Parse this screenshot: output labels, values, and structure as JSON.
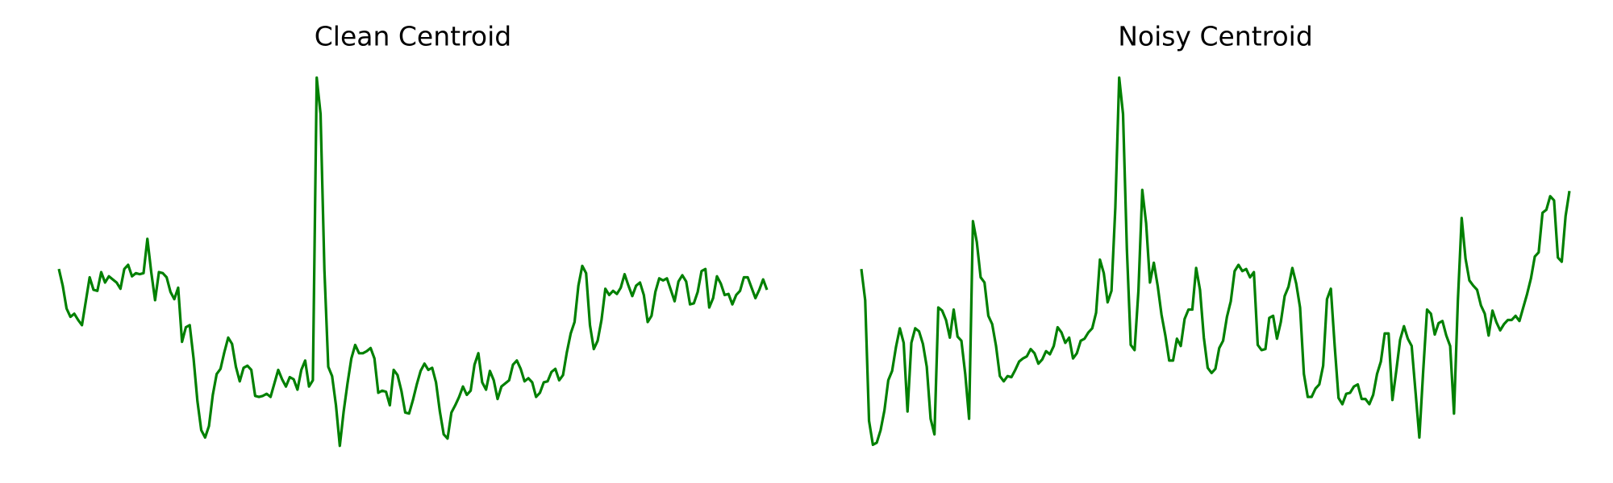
{
  "chart_data": [
    {
      "type": "line",
      "title": "Clean Centroid",
      "color": "#008000",
      "ylim": [
        0,
        370
      ],
      "values": [
        181,
        165,
        143,
        135,
        138,
        132,
        127,
        150,
        173,
        161,
        160,
        178,
        168,
        174,
        171,
        168,
        162,
        181,
        185,
        174,
        177,
        176,
        177,
        210,
        178,
        151,
        178,
        177,
        173,
        159,
        152,
        163,
        111,
        125,
        127,
        95,
        54,
        26,
        19,
        30,
        60,
        80,
        85,
        101,
        115,
        109,
        87,
        73,
        86,
        88,
        84,
        59,
        58,
        59,
        61,
        58,
        71,
        84,
        75,
        68,
        77,
        75,
        65,
        84,
        93,
        68,
        74,
        365,
        330,
        180,
        87,
        78,
        50,
        11,
        44,
        71,
        95,
        108,
        100,
        100,
        102,
        105,
        95,
        62,
        64,
        63,
        50,
        84,
        79,
        64,
        43,
        42,
        55,
        70,
        83,
        90,
        84,
        86,
        72,
        44,
        22,
        18,
        43,
        50,
        58,
        68,
        60,
        64,
        89,
        100,
        72,
        65,
        83,
        74,
        56,
        68,
        71,
        74,
        89,
        93,
        85,
        73,
        76,
        72,
        58,
        62,
        72,
        73,
        82,
        85,
        74,
        79,
        101,
        119,
        130,
        165,
        184,
        177,
        127,
        104,
        112,
        132,
        162,
        156,
        160,
        157,
        163,
        176,
        165,
        155,
        165,
        168,
        156,
        130,
        136,
        159,
        172,
        170,
        172,
        161,
        150,
        169,
        175,
        169,
        147,
        148,
        159,
        179,
        181,
        144,
        153,
        174,
        167,
        156,
        157,
        147,
        156,
        160,
        173,
        173,
        163,
        153,
        161,
        171,
        161
      ]
    },
    {
      "type": "line",
      "title": "Noisy Centroid",
      "color": "#008000",
      "ylim": [
        0,
        370
      ],
      "values": [
        181,
        151,
        35,
        12,
        14,
        26,
        45,
        74,
        83,
        106,
        124,
        110,
        44,
        110,
        124,
        121,
        109,
        87,
        37,
        22,
        144,
        141,
        132,
        115,
        142,
        116,
        112,
        80,
        37,
        227,
        207,
        173,
        168,
        136,
        128,
        107,
        78,
        73,
        78,
        77,
        84,
        92,
        95,
        97,
        104,
        100,
        90,
        94,
        102,
        99,
        107,
        125,
        120,
        110,
        115,
        95,
        100,
        112,
        114,
        120,
        124,
        139,
        190,
        177,
        149,
        160,
        240,
        365,
        330,
        200,
        108,
        103,
        160,
        257,
        225,
        168,
        187,
        165,
        137,
        117,
        93,
        93,
        114,
        107,
        133,
        142,
        142,
        182,
        161,
        115,
        86,
        81,
        85,
        105,
        112,
        135,
        150,
        179,
        185,
        179,
        181,
        173,
        178,
        108,
        103,
        104,
        134,
        136,
        114,
        130,
        155,
        164,
        182,
        167,
        144,
        80,
        58,
        58,
        66,
        70,
        88,
        152,
        162,
        107,
        57,
        51,
        61,
        62,
        68,
        70,
        56,
        56,
        51,
        60,
        80,
        92,
        119,
        119,
        55,
        83,
        113,
        126,
        114,
        107,
        63,
        19,
        83,
        142,
        138,
        118,
        129,
        131,
        117,
        107,
        42,
        150,
        230,
        191,
        170,
        165,
        161,
        146,
        138,
        117,
        141,
        130,
        122,
        128,
        132,
        132,
        136,
        131,
        144,
        157,
        172,
        193,
        197,
        235,
        238,
        251,
        247,
        192,
        188,
        232,
        256
      ]
    }
  ]
}
